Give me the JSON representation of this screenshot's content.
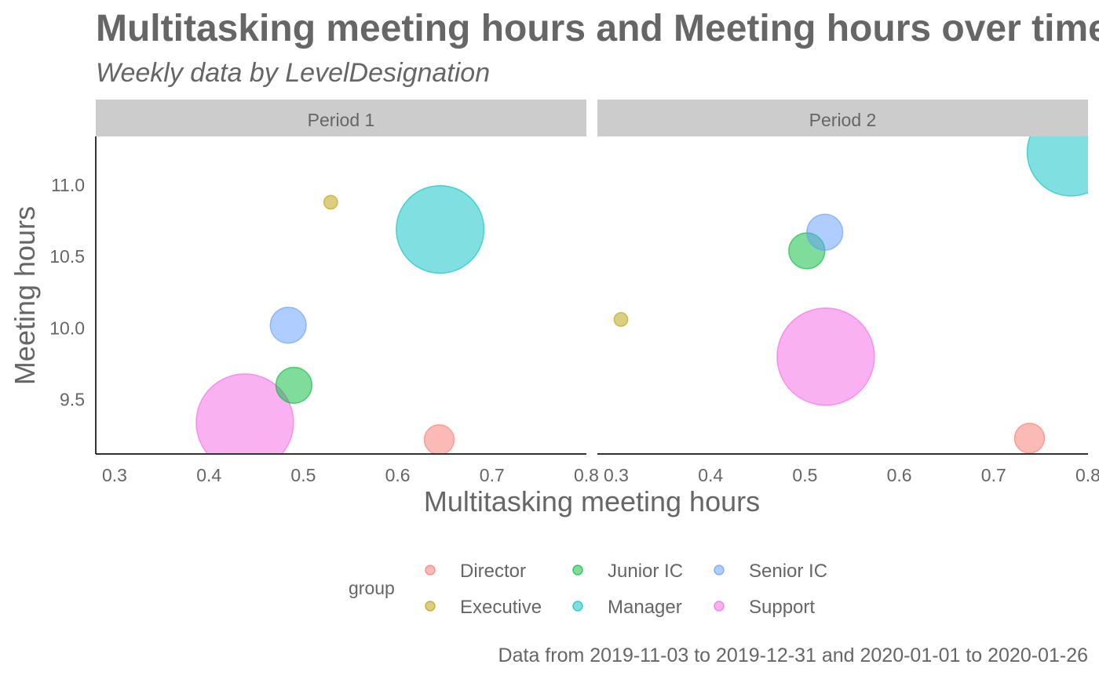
{
  "chart_data": {
    "type": "scatter",
    "title": "Multitasking meeting hours and Meeting hours over time",
    "subtitle": "Weekly data by LevelDesignation",
    "xlabel": "Multitasking meeting hours",
    "ylabel": "Meeting hours",
    "caption": "Data from 2019-11-03 to 2019-12-31 and 2020-01-01 to 2020-01-26",
    "xlim": [
      0.28,
      0.8
    ],
    "ylim": [
      9.12,
      11.34
    ],
    "x_ticks": [
      0.3,
      0.4,
      0.5,
      0.6,
      0.7,
      0.8
    ],
    "x_tick_labels": [
      "0.3",
      "0.4",
      "0.5",
      "0.6",
      "0.7",
      "0.8"
    ],
    "y_ticks": [
      9.5,
      10.0,
      10.5,
      11.0
    ],
    "y_tick_labels": [
      "9.5",
      "10.0",
      "10.5",
      "11.0"
    ],
    "grid": false,
    "legend": {
      "title": "group",
      "position": "bottom",
      "entries": [
        {
          "name": "Director",
          "color": "#F8766D"
        },
        {
          "name": "Executive",
          "color": "#B79F00"
        },
        {
          "name": "Junior IC",
          "color": "#00BA38"
        },
        {
          "name": "Manager",
          "color": "#00BFC4"
        },
        {
          "name": "Senior IC",
          "color": "#619CFF"
        },
        {
          "name": "Support",
          "color": "#F564E3"
        }
      ]
    },
    "facets": [
      {
        "label": "Period 1",
        "points": [
          {
            "group": "Director",
            "x": 0.644,
            "y": 9.22,
            "size": 10
          },
          {
            "group": "Executive",
            "x": 0.529,
            "y": 10.88,
            "size": 1
          },
          {
            "group": "Junior IC",
            "x": 0.49,
            "y": 9.6,
            "size": 16
          },
          {
            "group": "Manager",
            "x": 0.645,
            "y": 10.69,
            "size": 120
          },
          {
            "group": "Senior IC",
            "x": 0.484,
            "y": 10.02,
            "size": 16
          },
          {
            "group": "Support",
            "x": 0.438,
            "y": 9.34,
            "size": 150
          }
        ]
      },
      {
        "label": "Period 2",
        "points": [
          {
            "group": "Director",
            "x": 0.738,
            "y": 9.23,
            "size": 10
          },
          {
            "group": "Executive",
            "x": 0.305,
            "y": 10.06,
            "size": 1
          },
          {
            "group": "Junior IC",
            "x": 0.502,
            "y": 10.54,
            "size": 16
          },
          {
            "group": "Manager",
            "x": 0.782,
            "y": 11.23,
            "size": 120
          },
          {
            "group": "Senior IC",
            "x": 0.521,
            "y": 10.67,
            "size": 16
          },
          {
            "group": "Support",
            "x": 0.522,
            "y": 9.8,
            "size": 150
          }
        ]
      }
    ]
  }
}
